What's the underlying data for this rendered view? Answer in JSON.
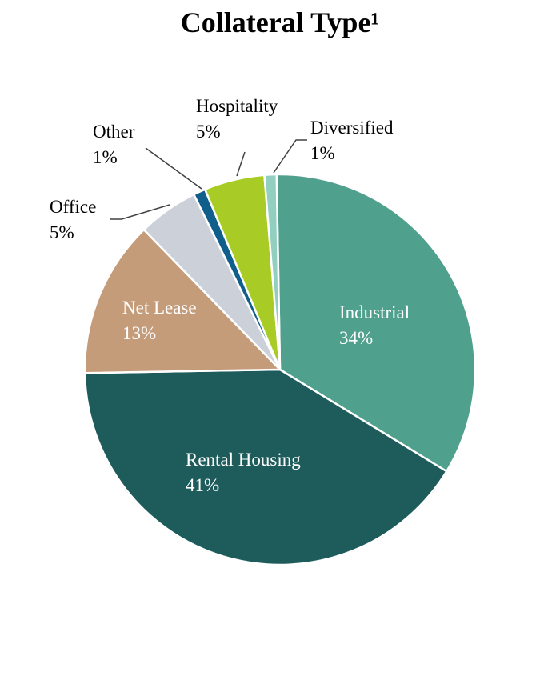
{
  "chart_data": {
    "type": "pie",
    "title": "Collateral Type¹",
    "slices": [
      {
        "label": "Industrial",
        "value": 34,
        "value_label": "34%",
        "color": "#4fa08d",
        "label_inside": true
      },
      {
        "label": "Rental Housing",
        "value": 41,
        "value_label": "41%",
        "color": "#1e5c5c",
        "label_inside": true
      },
      {
        "label": "Net Lease",
        "value": 13,
        "value_label": "13%",
        "color": "#c49c7a",
        "label_inside": true
      },
      {
        "label": "Office",
        "value": 5,
        "value_label": "5%",
        "color": "#ccd0d9",
        "label_inside": false
      },
      {
        "label": "Other",
        "value": 1,
        "value_label": "1%",
        "color": "#0f5e8c",
        "label_inside": false
      },
      {
        "label": "Hospitality",
        "value": 5,
        "value_label": "5%",
        "color": "#a8cc25",
        "label_inside": false
      },
      {
        "label": "Diversified",
        "value": 1,
        "value_label": "1%",
        "color": "#93cfc0",
        "label_inside": false
      }
    ]
  }
}
